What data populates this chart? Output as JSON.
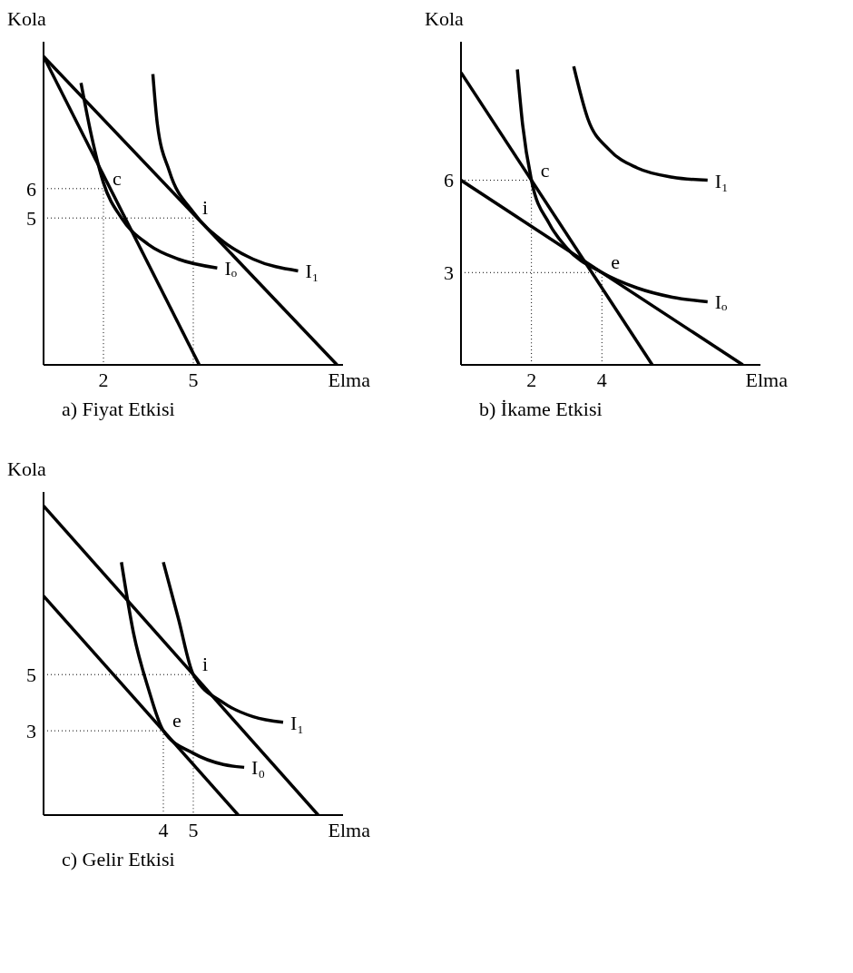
{
  "chart_data": [
    {
      "type": "line",
      "title": "a) Fiyat Etkisi",
      "xlabel": "Elma",
      "ylabel": "Kola",
      "xlim": [
        0,
        10
      ],
      "ylim": [
        0,
        11
      ],
      "xticks": [
        2,
        5
      ],
      "yticks": [
        5,
        6
      ],
      "marker": "none",
      "annotations": [
        {
          "text": "c",
          "x": 2,
          "y": 6
        },
        {
          "text": "i",
          "x": 5,
          "y": 5
        }
      ],
      "series": [
        {
          "color": "#000000",
          "x": [
            0,
            9.8
          ],
          "values": [
            10.5,
            0
          ]
        },
        {
          "color": "#000000",
          "x": [
            0,
            5.2
          ],
          "values": [
            10.5,
            0
          ]
        },
        {
          "name": "Iₒ",
          "color": "#000000",
          "x": [
            1.25,
            1.6,
            2,
            2.6,
            3.5,
            4.5,
            5.8
          ],
          "values": [
            9.6,
            7.8,
            6.2,
            5.0,
            4.1,
            3.6,
            3.3
          ]
        },
        {
          "name": "I₁",
          "color": "#000000",
          "x": [
            3.65,
            3.8,
            4.2,
            5,
            6,
            7,
            8.5
          ],
          "values": [
            9.9,
            8.2,
            6.6,
            5.2,
            4.2,
            3.6,
            3.2
          ]
        },
        {
          "color": "#000000",
          "line_style": "dotted",
          "x": [
            0,
            2,
            2
          ],
          "values": [
            6,
            6,
            0
          ]
        },
        {
          "color": "#000000",
          "line_style": "dotted",
          "x": [
            0,
            5,
            5
          ],
          "values": [
            5,
            5,
            0
          ]
        }
      ]
    },
    {
      "type": "line",
      "title": "b) İkame Etkisi",
      "xlabel": "Elma",
      "ylabel": "Kola",
      "xlim": [
        0,
        8.5
      ],
      "ylim": [
        0,
        10.5
      ],
      "xticks": [
        2,
        4
      ],
      "yticks": [
        3,
        6
      ],
      "marker": "none",
      "annotations": [
        {
          "text": "c",
          "x": 2,
          "y": 6
        },
        {
          "text": "e",
          "x": 4,
          "y": 3
        }
      ],
      "series": [
        {
          "color": "#000000",
          "x": [
            0,
            5.43
          ],
          "values": [
            9.5,
            0
          ]
        },
        {
          "color": "#000000",
          "x": [
            0,
            8
          ],
          "values": [
            6,
            0
          ]
        },
        {
          "name": "Iₒ",
          "color": "#000000",
          "x": [
            1.6,
            1.75,
            2,
            2.5,
            3,
            4,
            5,
            6,
            7
          ],
          "values": [
            9.6,
            7.8,
            6,
            4.6,
            3.8,
            3,
            2.5,
            2.2,
            2.05
          ]
        },
        {
          "name": "I₁",
          "color": "#000000",
          "x": [
            3.2,
            3.6,
            4.2,
            5,
            6,
            7
          ],
          "values": [
            9.7,
            8,
            7,
            6.4,
            6.1,
            6
          ]
        },
        {
          "color": "#000000",
          "line_style": "dotted",
          "x": [
            0,
            2,
            2
          ],
          "values": [
            6,
            6,
            0
          ]
        },
        {
          "color": "#000000",
          "line_style": "dotted",
          "x": [
            0,
            4,
            4
          ],
          "values": [
            3,
            3,
            0
          ]
        }
      ]
    },
    {
      "type": "line",
      "title": "c) Gelir Etkisi",
      "xlabel": "Elma",
      "ylabel": "Kola",
      "xlim": [
        0,
        10
      ],
      "ylim": [
        0,
        11.5
      ],
      "xticks": [
        4,
        5
      ],
      "yticks": [
        3,
        5
      ],
      "marker": "none",
      "annotations": [
        {
          "text": "e",
          "x": 4,
          "y": 3
        },
        {
          "text": "i",
          "x": 5,
          "y": 5
        }
      ],
      "series": [
        {
          "color": "#000000",
          "x": [
            0,
            6.5
          ],
          "values": [
            7.8,
            0
          ]
        },
        {
          "color": "#000000",
          "x": [
            0,
            9.17
          ],
          "values": [
            11,
            0
          ]
        },
        {
          "name": "I₀",
          "color": "#000000",
          "x": [
            2.6,
            3,
            3.5,
            4,
            5,
            6,
            6.7
          ],
          "values": [
            9,
            6.5,
            4.5,
            3,
            2.2,
            1.8,
            1.7
          ]
        },
        {
          "name": "I₁",
          "color": "#000000",
          "x": [
            4,
            4.5,
            5,
            6,
            7,
            8
          ],
          "values": [
            9,
            7,
            5,
            4,
            3.5,
            3.3
          ]
        },
        {
          "color": "#000000",
          "line_style": "dotted",
          "x": [
            0,
            5,
            5
          ],
          "values": [
            5,
            5,
            0
          ]
        },
        {
          "color": "#000000",
          "line_style": "dotted",
          "x": [
            0,
            4,
            4
          ],
          "values": [
            3,
            3,
            0
          ]
        }
      ]
    }
  ]
}
